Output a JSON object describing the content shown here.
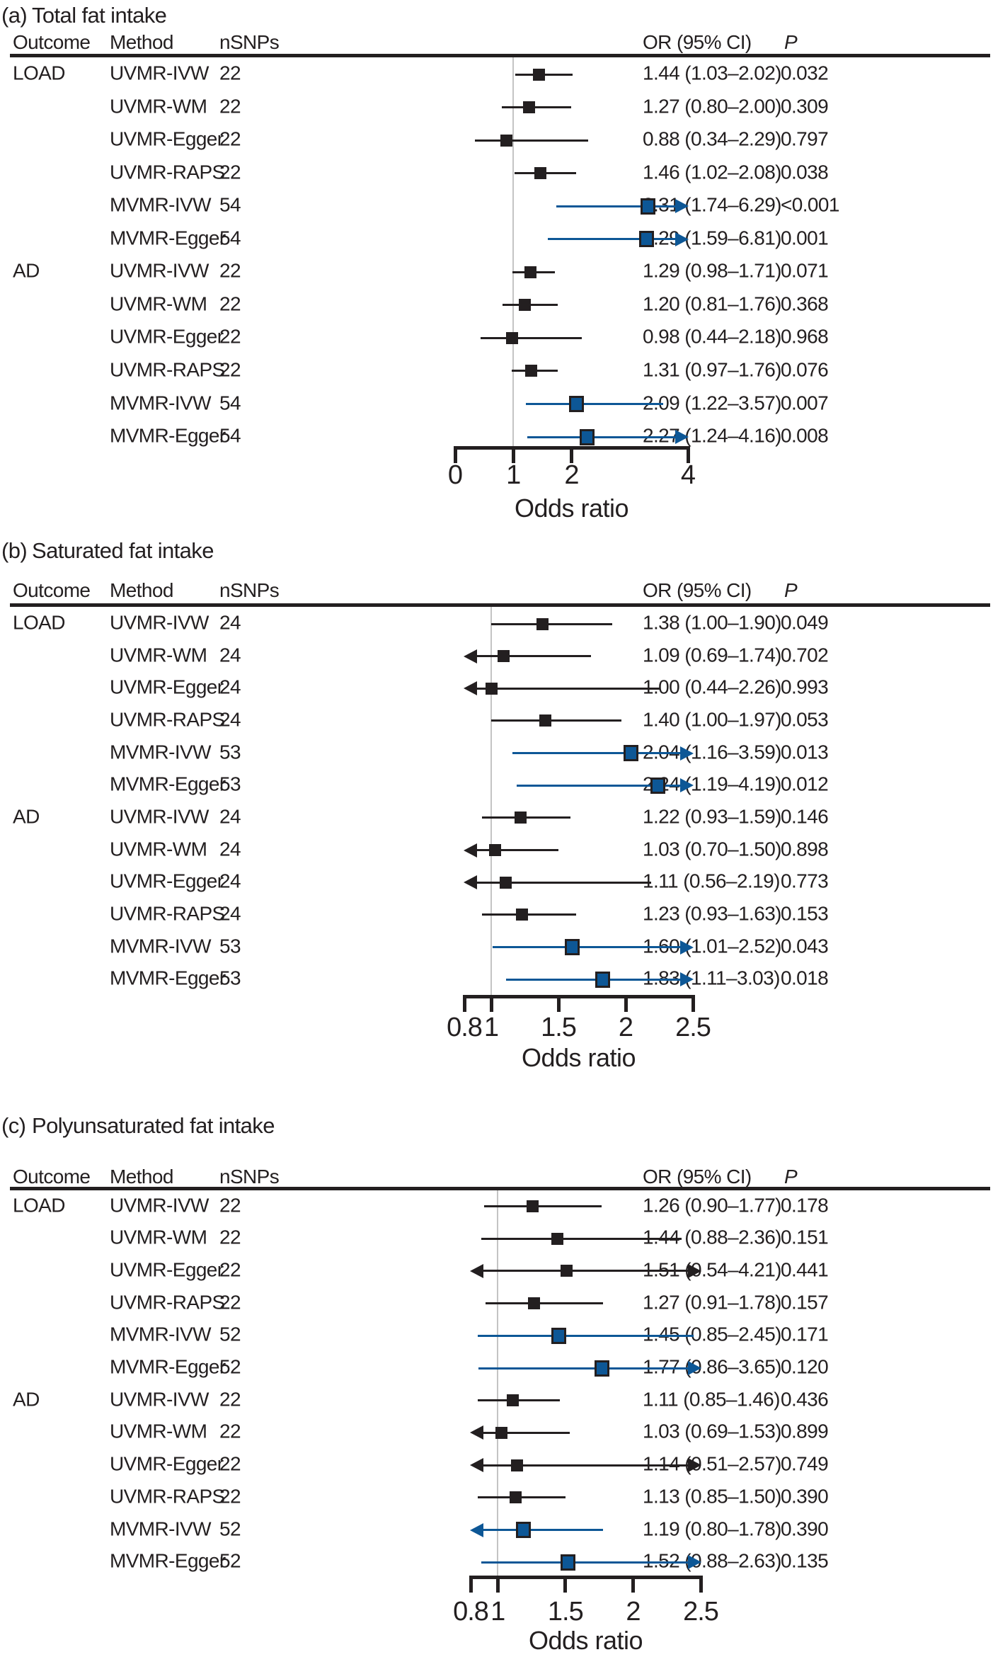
{
  "table_headers": {
    "outcome": "Outcome",
    "method": "Method",
    "nsnps": "nSNPs",
    "or_ci": "OR (95% CI)",
    "p": "P"
  },
  "xlabel": "Odds ratio",
  "colors": {
    "accent_blue": "#0d5796",
    "ink": "#231f20",
    "ref_line": "#c4c4c4"
  },
  "chart_data": [
    {
      "type": "forest",
      "tag": "(a)",
      "title": "Total fat intake",
      "xlabel": "Odds ratio",
      "axis": {
        "min": 0,
        "max": 4,
        "tick_values": [
          0,
          1,
          2,
          4
        ],
        "ticks": [
          "0",
          "1",
          "2",
          "4"
        ],
        "ref_value": 1
      },
      "rows": [
        {
          "outcome": "LOAD",
          "method": "UVMR-IVW",
          "nsnps": "22",
          "or": 1.44,
          "lo": 1.03,
          "hi": 2.02,
          "or_ci": "1.44 (1.03–2.02)",
          "p": "0.032",
          "style": "uvmr",
          "clip_lo": false,
          "clip_hi": false
        },
        {
          "outcome": "",
          "method": "UVMR-WM",
          "nsnps": "22",
          "or": 1.27,
          "lo": 0.8,
          "hi": 2.0,
          "or_ci": "1.27 (0.80–2.00)",
          "p": "0.309",
          "style": "uvmr",
          "clip_lo": false,
          "clip_hi": false
        },
        {
          "outcome": "",
          "method": "UVMR-Egger",
          "nsnps": "22",
          "or": 0.88,
          "lo": 0.34,
          "hi": 2.29,
          "or_ci": "0.88 (0.34–2.29)",
          "p": "0.797",
          "style": "uvmr",
          "clip_lo": false,
          "clip_hi": false
        },
        {
          "outcome": "",
          "method": "UVMR-RAPS",
          "nsnps": "22",
          "or": 1.46,
          "lo": 1.02,
          "hi": 2.08,
          "or_ci": "1.46 (1.02–2.08)",
          "p": "0.038",
          "style": "uvmr",
          "clip_lo": false,
          "clip_hi": false
        },
        {
          "outcome": "",
          "method": "MVMR-IVW",
          "nsnps": "54",
          "or": 3.31,
          "lo": 1.74,
          "hi": 6.29,
          "or_ci": "3.31 (1.74–6.29)",
          "p": "<0.001",
          "style": "mvmr",
          "clip_lo": false,
          "clip_hi": true
        },
        {
          "outcome": "",
          "method": "MVMR-Egger",
          "nsnps": "54",
          "or": 3.29,
          "lo": 1.59,
          "hi": 6.81,
          "or_ci": "3.29 (1.59–6.81)",
          "p": "0.001",
          "style": "mvmr",
          "clip_lo": false,
          "clip_hi": true
        },
        {
          "outcome": "AD",
          "method": "UVMR-IVW",
          "nsnps": "22",
          "or": 1.29,
          "lo": 0.98,
          "hi": 1.71,
          "or_ci": "1.29 (0.98–1.71)",
          "p": "0.071",
          "style": "uvmr",
          "clip_lo": false,
          "clip_hi": false
        },
        {
          "outcome": "",
          "method": "UVMR-WM",
          "nsnps": "22",
          "or": 1.2,
          "lo": 0.81,
          "hi": 1.76,
          "or_ci": "1.20 (0.81–1.76)",
          "p": "0.368",
          "style": "uvmr",
          "clip_lo": false,
          "clip_hi": false
        },
        {
          "outcome": "",
          "method": "UVMR-Egger",
          "nsnps": "22",
          "or": 0.98,
          "lo": 0.44,
          "hi": 2.18,
          "or_ci": "0.98 (0.44–2.18)",
          "p": "0.968",
          "style": "uvmr",
          "clip_lo": false,
          "clip_hi": false
        },
        {
          "outcome": "",
          "method": "UVMR-RAPS",
          "nsnps": "22",
          "or": 1.31,
          "lo": 0.97,
          "hi": 1.76,
          "or_ci": "1.31 (0.97–1.76)",
          "p": "0.076",
          "style": "uvmr",
          "clip_lo": false,
          "clip_hi": false
        },
        {
          "outcome": "",
          "method": "MVMR-IVW",
          "nsnps": "54",
          "or": 2.09,
          "lo": 1.22,
          "hi": 3.57,
          "or_ci": "2.09 (1.22–3.57)",
          "p": "0.007",
          "style": "mvmr",
          "clip_lo": false,
          "clip_hi": false
        },
        {
          "outcome": "",
          "method": "MVMR-Egger",
          "nsnps": "54",
          "or": 2.27,
          "lo": 1.24,
          "hi": 4.16,
          "or_ci": "2.27 (1.24–4.16)",
          "p": "0.008",
          "style": "mvmr",
          "clip_lo": false,
          "clip_hi": true
        }
      ]
    },
    {
      "type": "forest",
      "tag": "(b)",
      "title": "Saturated fat intake",
      "xlabel": "Odds ratio",
      "axis": {
        "min": 0.8,
        "max": 2.5,
        "tick_values": [
          0.8,
          1,
          1.5,
          2,
          2.5
        ],
        "ticks": [
          "0.8",
          "1",
          "1.5",
          "2",
          "2.5"
        ],
        "ref_value": 1
      },
      "rows": [
        {
          "outcome": "LOAD",
          "method": "UVMR-IVW",
          "nsnps": "24",
          "or": 1.38,
          "lo": 1.0,
          "hi": 1.9,
          "or_ci": "1.38 (1.00–1.90)",
          "p": "0.049",
          "style": "uvmr",
          "clip_lo": false,
          "clip_hi": false
        },
        {
          "outcome": "",
          "method": "UVMR-WM",
          "nsnps": "24",
          "or": 1.09,
          "lo": 0.69,
          "hi": 1.74,
          "or_ci": "1.09 (0.69–1.74)",
          "p": "0.702",
          "style": "uvmr",
          "clip_lo": true,
          "clip_hi": false
        },
        {
          "outcome": "",
          "method": "UVMR-Egger",
          "nsnps": "24",
          "or": 1.0,
          "lo": 0.44,
          "hi": 2.26,
          "or_ci": "1.00 (0.44–2.26)",
          "p": "0.993",
          "style": "uvmr",
          "clip_lo": true,
          "clip_hi": false
        },
        {
          "outcome": "",
          "method": "UVMR-RAPS",
          "nsnps": "24",
          "or": 1.4,
          "lo": 1.0,
          "hi": 1.97,
          "or_ci": "1.40 (1.00–1.97)",
          "p": "0.053",
          "style": "uvmr",
          "clip_lo": false,
          "clip_hi": false
        },
        {
          "outcome": "",
          "method": "MVMR-IVW",
          "nsnps": "53",
          "or": 2.04,
          "lo": 1.16,
          "hi": 3.59,
          "or_ci": "2.04 (1.16–3.59)",
          "p": "0.013",
          "style": "mvmr",
          "clip_lo": false,
          "clip_hi": true
        },
        {
          "outcome": "",
          "method": "MVMR-Egger",
          "nsnps": "53",
          "or": 2.24,
          "lo": 1.19,
          "hi": 4.19,
          "or_ci": "2.24 (1.19–4.19)",
          "p": "0.012",
          "style": "mvmr",
          "clip_lo": false,
          "clip_hi": true
        },
        {
          "outcome": "AD",
          "method": "UVMR-IVW",
          "nsnps": "24",
          "or": 1.22,
          "lo": 0.93,
          "hi": 1.59,
          "or_ci": "1.22 (0.93–1.59)",
          "p": "0.146",
          "style": "uvmr",
          "clip_lo": false,
          "clip_hi": false
        },
        {
          "outcome": "",
          "method": "UVMR-WM",
          "nsnps": "24",
          "or": 1.03,
          "lo": 0.7,
          "hi": 1.5,
          "or_ci": "1.03 (0.70–1.50)",
          "p": "0.898",
          "style": "uvmr",
          "clip_lo": true,
          "clip_hi": false
        },
        {
          "outcome": "",
          "method": "UVMR-Egger",
          "nsnps": "24",
          "or": 1.11,
          "lo": 0.56,
          "hi": 2.19,
          "or_ci": "1.11 (0.56–2.19)",
          "p": "0.773",
          "style": "uvmr",
          "clip_lo": true,
          "clip_hi": false
        },
        {
          "outcome": "",
          "method": "UVMR-RAPS",
          "nsnps": "24",
          "or": 1.23,
          "lo": 0.93,
          "hi": 1.63,
          "or_ci": "1.23 (0.93–1.63)",
          "p": "0.153",
          "style": "uvmr",
          "clip_lo": false,
          "clip_hi": false
        },
        {
          "outcome": "",
          "method": "MVMR-IVW",
          "nsnps": "53",
          "or": 1.6,
          "lo": 1.01,
          "hi": 2.52,
          "or_ci": "1.60 (1.01–2.52)",
          "p": "0.043",
          "style": "mvmr",
          "clip_lo": false,
          "clip_hi": true
        },
        {
          "outcome": "",
          "method": "MVMR-Egger",
          "nsnps": "53",
          "or": 1.83,
          "lo": 1.11,
          "hi": 3.03,
          "or_ci": "1.83 (1.11–3.03)",
          "p": "0.018",
          "style": "mvmr",
          "clip_lo": false,
          "clip_hi": true
        }
      ]
    },
    {
      "type": "forest",
      "tag": "(c)",
      "title": "Polyunsaturated fat intake",
      "xlabel": "Odds ratio",
      "axis": {
        "min": 0.8,
        "max": 2.5,
        "tick_values": [
          0.8,
          1,
          1.5,
          2,
          2.5
        ],
        "ticks": [
          "0.8",
          "1",
          "1.5",
          "2",
          "2.5"
        ],
        "ref_value": 1
      },
      "rows": [
        {
          "outcome": "LOAD",
          "method": "UVMR-IVW",
          "nsnps": "22",
          "or": 1.26,
          "lo": 0.9,
          "hi": 1.77,
          "or_ci": "1.26 (0.90–1.77)",
          "p": "0.178",
          "style": "uvmr",
          "clip_lo": false,
          "clip_hi": false
        },
        {
          "outcome": "",
          "method": "UVMR-WM",
          "nsnps": "22",
          "or": 1.44,
          "lo": 0.88,
          "hi": 2.36,
          "or_ci": "1.44 (0.88–2.36)",
          "p": "0.151",
          "style": "uvmr",
          "clip_lo": false,
          "clip_hi": false
        },
        {
          "outcome": "",
          "method": "UVMR-Egger",
          "nsnps": "22",
          "or": 1.51,
          "lo": 0.54,
          "hi": 4.21,
          "or_ci": "1.51 (0.54–4.21)",
          "p": "0.441",
          "style": "uvmr",
          "clip_lo": true,
          "clip_hi": true
        },
        {
          "outcome": "",
          "method": "UVMR-RAPS",
          "nsnps": "22",
          "or": 1.27,
          "lo": 0.91,
          "hi": 1.78,
          "or_ci": "1.27 (0.91–1.78)",
          "p": "0.157",
          "style": "uvmr",
          "clip_lo": false,
          "clip_hi": false
        },
        {
          "outcome": "",
          "method": "MVMR-IVW",
          "nsnps": "52",
          "or": 1.45,
          "lo": 0.85,
          "hi": 2.45,
          "or_ci": "1.45 (0.85–2.45)",
          "p": "0.171",
          "style": "mvmr",
          "clip_lo": false,
          "clip_hi": false
        },
        {
          "outcome": "",
          "method": "MVMR-Egger",
          "nsnps": "52",
          "or": 1.77,
          "lo": 0.86,
          "hi": 3.65,
          "or_ci": "1.77 (0.86–3.65)",
          "p": "0.120",
          "style": "mvmr",
          "clip_lo": false,
          "clip_hi": true
        },
        {
          "outcome": "AD",
          "method": "UVMR-IVW",
          "nsnps": "22",
          "or": 1.11,
          "lo": 0.85,
          "hi": 1.46,
          "or_ci": "1.11 (0.85–1.46)",
          "p": "0.436",
          "style": "uvmr",
          "clip_lo": false,
          "clip_hi": false
        },
        {
          "outcome": "",
          "method": "UVMR-WM",
          "nsnps": "22",
          "or": 1.03,
          "lo": 0.69,
          "hi": 1.53,
          "or_ci": "1.03 (0.69–1.53)",
          "p": "0.899",
          "style": "uvmr",
          "clip_lo": true,
          "clip_hi": false
        },
        {
          "outcome": "",
          "method": "UVMR-Egger",
          "nsnps": "22",
          "or": 1.14,
          "lo": 0.51,
          "hi": 2.57,
          "or_ci": "1.14 (0.51–2.57)",
          "p": "0.749",
          "style": "uvmr",
          "clip_lo": true,
          "clip_hi": true
        },
        {
          "outcome": "",
          "method": "UVMR-RAPS",
          "nsnps": "22",
          "or": 1.13,
          "lo": 0.85,
          "hi": 1.5,
          "or_ci": "1.13 (0.85–1.50)",
          "p": "0.390",
          "style": "uvmr",
          "clip_lo": false,
          "clip_hi": false
        },
        {
          "outcome": "",
          "method": "MVMR-IVW",
          "nsnps": "52",
          "or": 1.19,
          "lo": 0.8,
          "hi": 1.78,
          "or_ci": "1.19 (0.80–1.78)",
          "p": "0.390",
          "style": "mvmr",
          "clip_lo": true,
          "clip_hi": false
        },
        {
          "outcome": "",
          "method": "MVMR-Egger",
          "nsnps": "52",
          "or": 1.52,
          "lo": 0.88,
          "hi": 2.63,
          "or_ci": "1.52 (0.88–2.63)",
          "p": "0.135",
          "style": "mvmr",
          "clip_lo": false,
          "clip_hi": true
        }
      ]
    }
  ]
}
